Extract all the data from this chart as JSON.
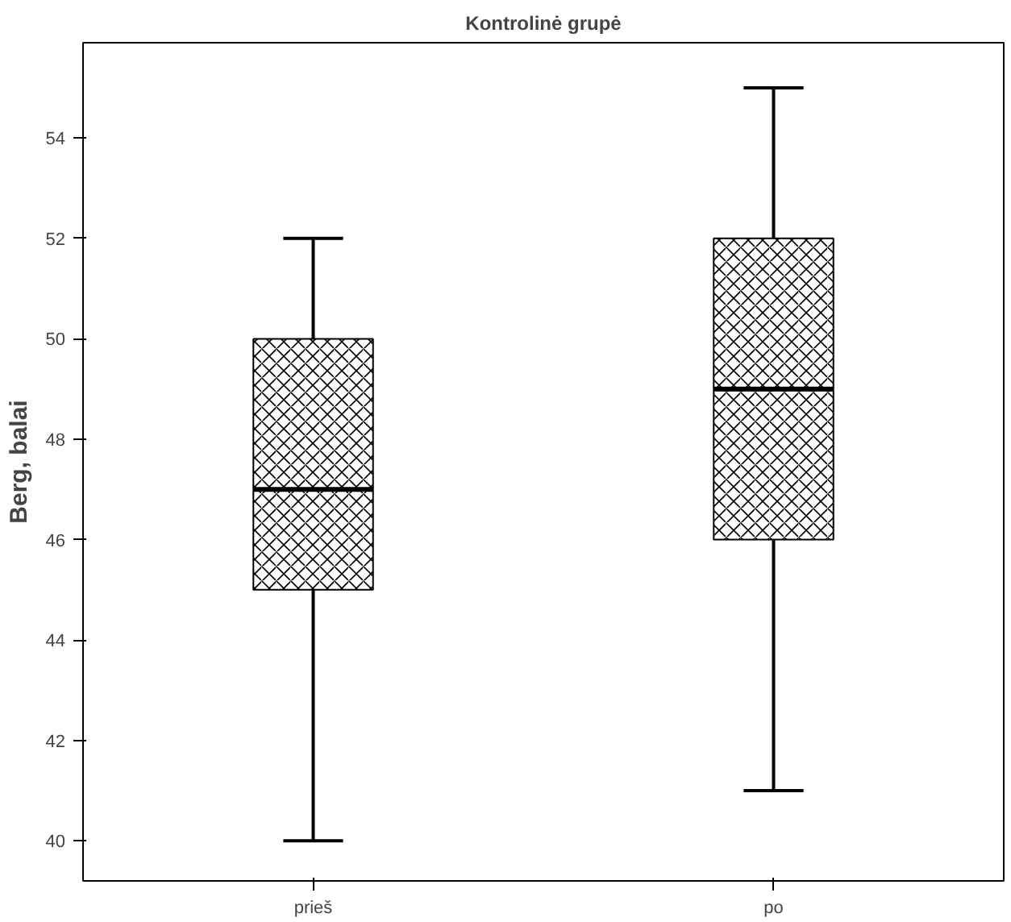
{
  "chart_data": {
    "type": "box",
    "title": "Kontrolinė grupė",
    "ylabel": "Berg, balai",
    "categories": [
      "prieš",
      "po"
    ],
    "boxes": [
      {
        "low": 40,
        "q1": 45,
        "median": 47,
        "q3": 50,
        "high": 52
      },
      {
        "low": 41,
        "q1": 46,
        "median": 49,
        "q3": 52,
        "high": 55
      }
    ],
    "ylim": [
      39.2,
      55.9
    ],
    "yticks": [
      40,
      42,
      44,
      46,
      48,
      50,
      52,
      54
    ]
  }
}
